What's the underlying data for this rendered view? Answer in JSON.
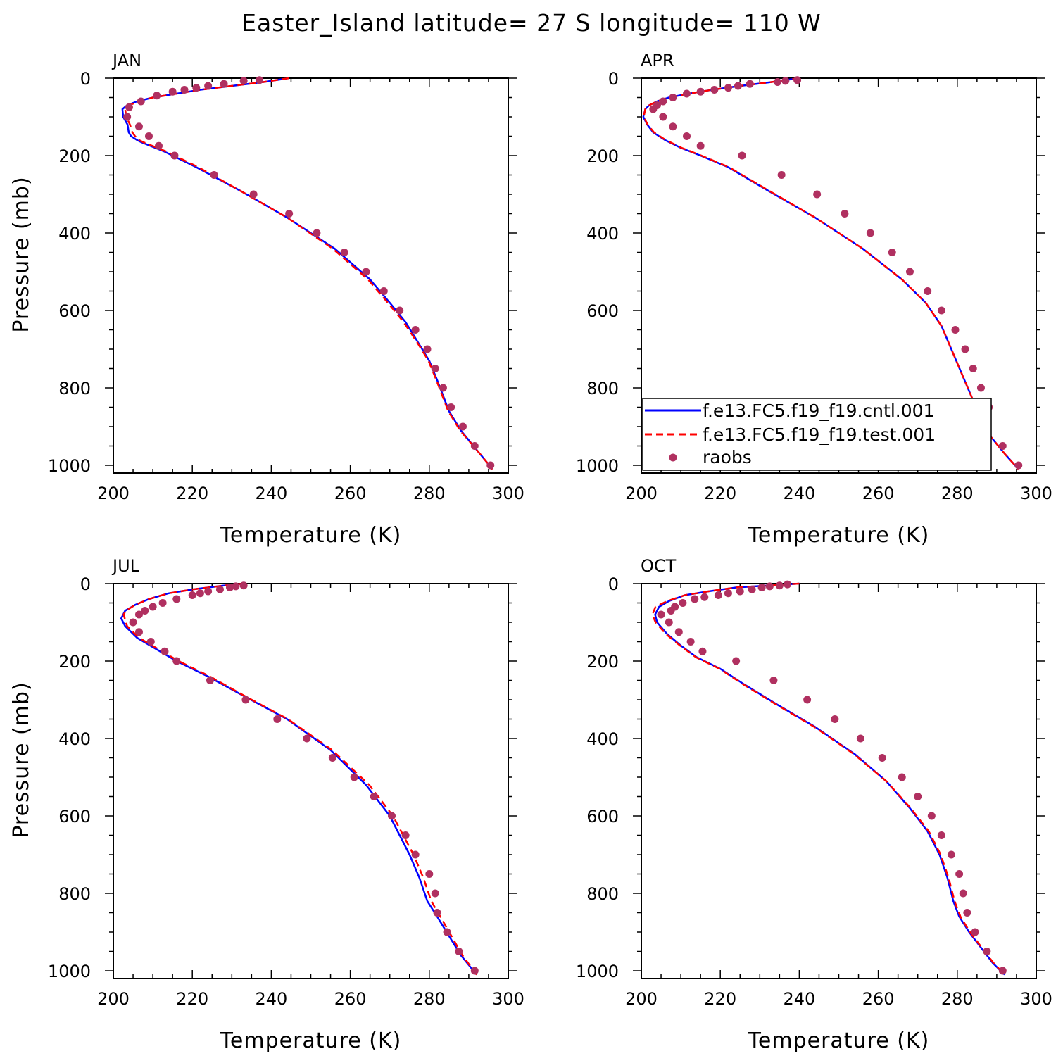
{
  "title": "Easter_Island  latitude= 27 S longitude= 110 W",
  "legend": {
    "entries": [
      {
        "label": "f.e13.FC5.f19_f19.cntl.001",
        "color": "#0000ff",
        "style": "solid"
      },
      {
        "label": "f.e13.FC5.f19_f19.test.001",
        "color": "#ff0000",
        "style": "dashed"
      },
      {
        "label": "raobs",
        "color": "#b03060",
        "style": "marker"
      }
    ]
  },
  "chart_data": [
    {
      "type": "line",
      "panel": "JAN",
      "xlabel": "Temperature (K)",
      "ylabel": "Pressure (mb)",
      "xlim": [
        200,
        300
      ],
      "ylim": [
        1020,
        0
      ],
      "xticks": [
        200,
        220,
        240,
        260,
        280,
        300
      ],
      "yticks": [
        0,
        200,
        400,
        600,
        800,
        1000
      ],
      "series": [
        {
          "name": "f.e13.FC5.f19_f19.cntl.001",
          "x": [
            244.5,
            238,
            230,
            222,
            216,
            210,
            206,
            203.5,
            202.3,
            202.5,
            203.6,
            203.9,
            204.5,
            206,
            207,
            213,
            221,
            232,
            244,
            256,
            265,
            270,
            274,
            277,
            280,
            282,
            283.5,
            285,
            288,
            292,
            296
          ],
          "y": [
            0,
            10,
            20,
            30,
            40,
            50,
            60,
            70,
            80,
            100,
            120,
            140,
            150,
            160,
            165,
            190,
            230,
            290,
            360,
            440,
            520,
            580,
            630,
            680,
            730,
            780,
            820,
            860,
            910,
            960,
            1010
          ]
        },
        {
          "name": "f.e13.FC5.f19_f19.test.001",
          "x": [
            244.5,
            238,
            230,
            222,
            216,
            210,
            206.5,
            204,
            203,
            203.3,
            204.2,
            204.8,
            205.5,
            206.5,
            207.5,
            213.5,
            221.5,
            232,
            244,
            255.5,
            264.5,
            269.5,
            273.5,
            276.8,
            279.8,
            281.8,
            283.3,
            284.8,
            287.8,
            292,
            296
          ],
          "y": [
            0,
            10,
            20,
            30,
            40,
            50,
            60,
            70,
            80,
            100,
            120,
            140,
            150,
            160,
            165,
            190,
            230,
            290,
            360,
            440,
            520,
            580,
            630,
            680,
            730,
            780,
            820,
            860,
            910,
            960,
            1010
          ]
        },
        {
          "name": "raobs",
          "x": [
            237,
            233,
            228,
            224,
            221,
            218,
            215,
            211,
            207,
            204,
            203.5,
            206.5,
            209,
            211.5,
            215.5,
            225.5,
            235.5,
            244.5,
            251.5,
            258.5,
            264,
            268.5,
            272.5,
            276.5,
            279.5,
            281.5,
            283.5,
            285.5,
            288.5,
            291.5,
            295.5
          ],
          "y": [
            5,
            7,
            15,
            20,
            25,
            30,
            35,
            45,
            60,
            75,
            100,
            125,
            150,
            175,
            200,
            250,
            300,
            350,
            400,
            450,
            500,
            550,
            600,
            650,
            700,
            750,
            800,
            850,
            900,
            950,
            1000
          ]
        }
      ]
    },
    {
      "type": "line",
      "panel": "APR",
      "xlabel": "Temperature (K)",
      "ylabel": "",
      "xlim": [
        200,
        300
      ],
      "ylim": [
        1020,
        0
      ],
      "xticks": [
        200,
        220,
        240,
        260,
        280,
        300
      ],
      "yticks": [
        0,
        200,
        400,
        600,
        800,
        1000
      ],
      "series": [
        {
          "name": "f.e13.FC5.f19_f19.cntl.001",
          "x": [
            240,
            233,
            225,
            218,
            212,
            207,
            204,
            202,
            201,
            200.5,
            201.5,
            203,
            206,
            210,
            215,
            222,
            232,
            244,
            256,
            266,
            272,
            276,
            278.5,
            281,
            283.5,
            285.5,
            288,
            292,
            295.5
          ],
          "y": [
            0,
            10,
            20,
            30,
            40,
            50,
            60,
            70,
            80,
            100,
            120,
            140,
            160,
            180,
            200,
            230,
            290,
            360,
            440,
            520,
            580,
            640,
            700,
            760,
            820,
            870,
            920,
            970,
            1010
          ]
        },
        {
          "name": "f.e13.FC5.f19_f19.test.001",
          "x": [
            240,
            233,
            225,
            218,
            212,
            207,
            204,
            202,
            201,
            200.6,
            201.6,
            203.2,
            206.2,
            210.2,
            215.2,
            222.2,
            232.2,
            244,
            256,
            266,
            272,
            276,
            278.5,
            281,
            283.5,
            285.5,
            288,
            292,
            295.5
          ],
          "y": [
            0,
            10,
            20,
            30,
            40,
            50,
            60,
            70,
            80,
            100,
            120,
            140,
            160,
            180,
            200,
            230,
            290,
            360,
            440,
            520,
            580,
            640,
            700,
            760,
            820,
            870,
            920,
            970,
            1010
          ]
        },
        {
          "name": "raobs",
          "x": [
            239.5,
            236.5,
            234.5,
            227.5,
            224.5,
            222,
            218.5,
            215,
            211.5,
            208,
            205.5,
            204,
            203,
            205.5,
            208,
            211.5,
            215,
            225.5,
            235.5,
            244.5,
            251.5,
            258,
            263.5,
            268,
            272.5,
            276,
            279.5,
            282,
            284,
            286,
            288,
            291.5,
            295.5
          ],
          "y": [
            5,
            7,
            10,
            15,
            20,
            25,
            30,
            35,
            40,
            50,
            60,
            70,
            80,
            100,
            125,
            150,
            175,
            200,
            250,
            300,
            350,
            400,
            450,
            500,
            550,
            600,
            650,
            700,
            750,
            800,
            850,
            950,
            1000
          ]
        }
      ]
    },
    {
      "type": "line",
      "panel": "JUL",
      "xlabel": "Temperature (K)",
      "ylabel": "Pressure (mb)",
      "xlim": [
        200,
        300
      ],
      "ylim": [
        1020,
        0
      ],
      "xticks": [
        200,
        220,
        240,
        260,
        280,
        300
      ],
      "yticks": [
        0,
        200,
        400,
        600,
        800,
        1000
      ],
      "series": [
        {
          "name": "f.e13.FC5.f19_f19.cntl.001",
          "x": [
            233,
            228,
            220,
            214,
            209,
            205.5,
            203,
            202,
            203,
            206,
            211,
            216,
            224,
            233,
            244,
            255,
            264,
            270,
            275,
            277.5,
            279.5,
            282,
            285,
            288,
            292
          ],
          "y": [
            0,
            5,
            15,
            25,
            40,
            55,
            70,
            90,
            110,
            140,
            170,
            200,
            240,
            290,
            350,
            430,
            520,
            600,
            700,
            760,
            820,
            860,
            910,
            960,
            1010
          ]
        },
        {
          "name": "f.e13.FC5.f19_f19.test.001",
          "x": [
            233,
            228,
            220,
            214,
            209,
            205.5,
            203.2,
            202.6,
            203.5,
            206.5,
            211.5,
            216.5,
            224.5,
            233.2,
            244.2,
            255.4,
            264.8,
            270.8,
            276,
            278.5,
            280.5,
            282.8,
            285.6,
            288.4,
            292
          ],
          "y": [
            0,
            5,
            15,
            25,
            40,
            55,
            70,
            80,
            110,
            140,
            170,
            200,
            240,
            290,
            350,
            430,
            520,
            600,
            700,
            760,
            820,
            860,
            910,
            960,
            1010
          ]
        },
        {
          "name": "raobs",
          "x": [
            233,
            231,
            229.5,
            227,
            224,
            222,
            220,
            216,
            212.5,
            210,
            208,
            206.5,
            205,
            206.5,
            209.5,
            213,
            216,
            224.5,
            233.5,
            241.5,
            249,
            255.5,
            261,
            266,
            270.5,
            274,
            276.5,
            280,
            281.5,
            282,
            284.5,
            287.5,
            291.5
          ],
          "y": [
            5,
            7,
            10,
            15,
            20,
            25,
            30,
            40,
            50,
            60,
            70,
            80,
            100,
            125,
            150,
            175,
            200,
            250,
            300,
            350,
            400,
            450,
            500,
            550,
            600,
            650,
            700,
            750,
            800,
            850,
            900,
            950,
            1000
          ]
        }
      ]
    },
    {
      "type": "line",
      "panel": "OCT",
      "xlabel": "Temperature (K)",
      "ylabel": "",
      "xlim": [
        200,
        300
      ],
      "ylim": [
        1020,
        0
      ],
      "xticks": [
        200,
        220,
        240,
        260,
        280,
        300
      ],
      "yticks": [
        0,
        200,
        400,
        600,
        800,
        1000
      ],
      "series": [
        {
          "name": "f.e13.FC5.f19_f19.cntl.001",
          "x": [
            240,
            232,
            224,
            217,
            211,
            207,
            204.5,
            203.5,
            204,
            206.5,
            210,
            214,
            220,
            226,
            234,
            244,
            254,
            262,
            268,
            272.5,
            275.5,
            277.5,
            279,
            280.5,
            283,
            286,
            289,
            292
          ],
          "y": [
            0,
            5,
            10,
            20,
            30,
            45,
            60,
            80,
            100,
            130,
            160,
            190,
            220,
            260,
            310,
            370,
            440,
            510,
            580,
            640,
            700,
            760,
            820,
            860,
            900,
            940,
            980,
            1010
          ]
        },
        {
          "name": "f.e13.FC5.f19_f19.test.001",
          "x": [
            240,
            232,
            224,
            217,
            211,
            206.6,
            203.6,
            202.8,
            203.6,
            206.2,
            209.8,
            213.8,
            219.8,
            225.8,
            233.8,
            243.8,
            253.8,
            262,
            268.2,
            272.8,
            275.8,
            277.8,
            279.3,
            280.8,
            283.2,
            286.2,
            289.2,
            292
          ],
          "y": [
            0,
            5,
            10,
            20,
            30,
            45,
            60,
            80,
            100,
            130,
            160,
            190,
            220,
            260,
            310,
            370,
            440,
            510,
            580,
            640,
            700,
            760,
            820,
            860,
            900,
            940,
            980,
            1010
          ]
        },
        {
          "name": "raobs",
          "x": [
            237,
            235,
            232.5,
            230.5,
            228,
            225,
            222,
            219.5,
            216,
            213.5,
            210.5,
            208.5,
            207.5,
            205,
            207,
            209.5,
            212.5,
            215.5,
            224,
            233.5,
            242,
            249,
            255.5,
            261,
            266,
            270,
            273.5,
            276,
            278.5,
            280.5,
            281.5,
            282.5,
            284.5,
            287.5,
            291.5
          ],
          "y": [
            2,
            5,
            7,
            10,
            15,
            20,
            25,
            30,
            35,
            40,
            50,
            60,
            70,
            80,
            100,
            125,
            150,
            175,
            200,
            250,
            300,
            350,
            400,
            450,
            500,
            550,
            600,
            650,
            700,
            750,
            800,
            850,
            900,
            950,
            1000
          ]
        }
      ]
    }
  ]
}
